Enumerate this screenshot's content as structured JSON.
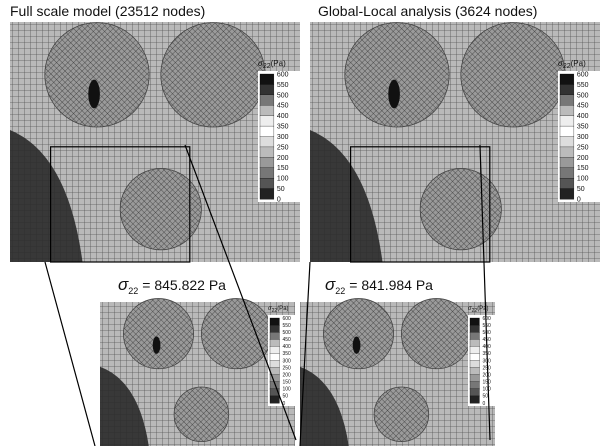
{
  "panels": [
    {
      "title": "Full scale model (23512 nodes)",
      "result": {
        "symbol": "σ",
        "subscript": "22",
        "text": "= 845.822 Pa"
      }
    },
    {
      "title": "Global-Local analysis (3624 nodes)",
      "result": {
        "symbol": "σ",
        "subscript": "22",
        "text": "= 841.984 Pa"
      }
    }
  ],
  "colorbar": {
    "symbol": "σ",
    "subscript": "22",
    "unit": "(Pa)",
    "ticks": [
      "600",
      "550",
      "500",
      "450",
      "400",
      "350",
      "300",
      "250",
      "200",
      "150",
      "100",
      "50",
      "0"
    ]
  }
}
